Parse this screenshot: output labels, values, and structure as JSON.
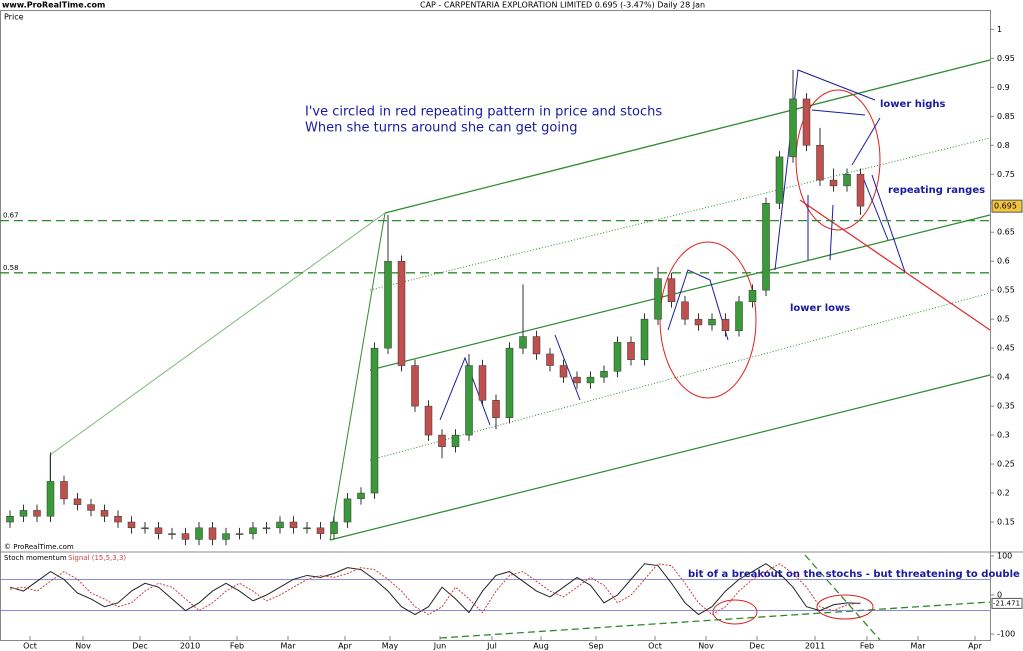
{
  "header": {
    "site": "www.ProRealTime.com",
    "title": "CAP - CARPENTARIA EXPLORATION LIMITED   0.695 (-3.47%)   Daily  28 Jan"
  },
  "chart_data": [
    {
      "type": "candlestick",
      "y_label": "Price",
      "copyright": "© ProRealTime.com",
      "ylim": [
        0.1,
        1.03
      ],
      "yticks": [
        0.15,
        0.2,
        0.25,
        0.3,
        0.35,
        0.4,
        0.45,
        0.5,
        0.55,
        0.6,
        0.65,
        0.7,
        0.75,
        0.8,
        0.85,
        0.9,
        0.95,
        1
      ],
      "months": [
        "Oct",
        "Nov",
        "Dec",
        "2010",
        "Feb",
        "Mar",
        "Apr",
        "May",
        "Jun",
        "Jul",
        "Aug",
        "Sep",
        "Oct",
        "Nov",
        "Dec",
        "2011",
        "Feb",
        "Mar",
        "Apr"
      ],
      "levels": [
        0.67,
        0.58
      ],
      "up_color": "#3a9a3a",
      "down_color": "#c0504d",
      "candles": [
        [
          0.15,
          0.17,
          0.14,
          0.16
        ],
        [
          0.16,
          0.18,
          0.15,
          0.17
        ],
        [
          0.17,
          0.18,
          0.15,
          0.16
        ],
        [
          0.16,
          0.27,
          0.15,
          0.22
        ],
        [
          0.22,
          0.23,
          0.18,
          0.19
        ],
        [
          0.19,
          0.2,
          0.17,
          0.18
        ],
        [
          0.18,
          0.19,
          0.16,
          0.17
        ],
        [
          0.17,
          0.18,
          0.15,
          0.16
        ],
        [
          0.16,
          0.17,
          0.14,
          0.15
        ],
        [
          0.15,
          0.16,
          0.13,
          0.14
        ],
        [
          0.14,
          0.15,
          0.13,
          0.14
        ],
        [
          0.14,
          0.15,
          0.12,
          0.13
        ],
        [
          0.13,
          0.14,
          0.12,
          0.13
        ],
        [
          0.13,
          0.14,
          0.11,
          0.12
        ],
        [
          0.12,
          0.15,
          0.11,
          0.14
        ],
        [
          0.14,
          0.15,
          0.11,
          0.12
        ],
        [
          0.12,
          0.14,
          0.11,
          0.13
        ],
        [
          0.13,
          0.14,
          0.12,
          0.13
        ],
        [
          0.13,
          0.15,
          0.12,
          0.14
        ],
        [
          0.14,
          0.15,
          0.13,
          0.14
        ],
        [
          0.14,
          0.16,
          0.13,
          0.15
        ],
        [
          0.15,
          0.16,
          0.13,
          0.14
        ],
        [
          0.14,
          0.15,
          0.13,
          0.14
        ],
        [
          0.14,
          0.15,
          0.12,
          0.13
        ],
        [
          0.13,
          0.16,
          0.12,
          0.15
        ],
        [
          0.15,
          0.2,
          0.14,
          0.19
        ],
        [
          0.19,
          0.21,
          0.18,
          0.2
        ],
        [
          0.2,
          0.46,
          0.19,
          0.45
        ],
        [
          0.45,
          0.68,
          0.44,
          0.6
        ],
        [
          0.6,
          0.61,
          0.41,
          0.42
        ],
        [
          0.42,
          0.43,
          0.34,
          0.35
        ],
        [
          0.35,
          0.36,
          0.29,
          0.3
        ],
        [
          0.3,
          0.31,
          0.26,
          0.28
        ],
        [
          0.28,
          0.31,
          0.27,
          0.3
        ],
        [
          0.3,
          0.44,
          0.29,
          0.42
        ],
        [
          0.42,
          0.43,
          0.35,
          0.36
        ],
        [
          0.36,
          0.37,
          0.31,
          0.33
        ],
        [
          0.33,
          0.46,
          0.32,
          0.45
        ],
        [
          0.45,
          0.56,
          0.44,
          0.47
        ],
        [
          0.47,
          0.48,
          0.43,
          0.44
        ],
        [
          0.44,
          0.45,
          0.41,
          0.42
        ],
        [
          0.42,
          0.43,
          0.39,
          0.4
        ],
        [
          0.4,
          0.41,
          0.38,
          0.39
        ],
        [
          0.39,
          0.41,
          0.38,
          0.4
        ],
        [
          0.4,
          0.42,
          0.39,
          0.41
        ],
        [
          0.41,
          0.47,
          0.4,
          0.46
        ],
        [
          0.46,
          0.47,
          0.42,
          0.43
        ],
        [
          0.43,
          0.51,
          0.42,
          0.5
        ],
        [
          0.5,
          0.59,
          0.49,
          0.57
        ],
        [
          0.57,
          0.58,
          0.52,
          0.53
        ],
        [
          0.53,
          0.54,
          0.49,
          0.5
        ],
        [
          0.5,
          0.51,
          0.48,
          0.49
        ],
        [
          0.49,
          0.51,
          0.48,
          0.5
        ],
        [
          0.5,
          0.51,
          0.47,
          0.48
        ],
        [
          0.48,
          0.54,
          0.47,
          0.53
        ],
        [
          0.53,
          0.56,
          0.52,
          0.55
        ],
        [
          0.55,
          0.71,
          0.54,
          0.7
        ],
        [
          0.7,
          0.79,
          0.69,
          0.78
        ],
        [
          0.78,
          0.93,
          0.77,
          0.88
        ],
        [
          0.88,
          0.89,
          0.79,
          0.8
        ],
        [
          0.8,
          0.83,
          0.73,
          0.74
        ],
        [
          0.74,
          0.76,
          0.72,
          0.73
        ],
        [
          0.73,
          0.76,
          0.72,
          0.75
        ],
        [
          0.75,
          0.76,
          0.68,
          0.695
        ]
      ],
      "annotations": [
        "I've circled in red repeating pattern in price and stochs",
        "When she turns around she can get going",
        "lower highs",
        "repeating ranges",
        "lower lows"
      ]
    },
    {
      "type": "line",
      "title": "Stoch momentum",
      "ylim": [
        -110,
        110
      ],
      "yticks": [
        100,
        0,
        -100
      ],
      "bands": [
        40,
        -40
      ],
      "annotation": "bit of a breakout on the stochs - but threatening to double dip",
      "series": [
        {
          "name": "Stoch momentum",
          "color": "#222222",
          "values": [
            20,
            10,
            35,
            60,
            40,
            5,
            -10,
            -30,
            -20,
            10,
            30,
            20,
            -10,
            -40,
            -20,
            10,
            30,
            10,
            -15,
            0,
            20,
            40,
            50,
            45,
            55,
            70,
            65,
            40,
            10,
            -30,
            -50,
            -30,
            20,
            -10,
            -45,
            10,
            50,
            60,
            35,
            10,
            -5,
            20,
            45,
            25,
            -20,
            0,
            40,
            80,
            75,
            30,
            -20,
            -50,
            -30,
            10,
            40,
            60,
            80,
            55,
            20,
            -30,
            -40,
            -25,
            -20,
            -21.471
          ]
        },
        {
          "name": "Signal (15,5,3,3)",
          "color": "#d04040",
          "values": [
            15,
            20,
            10,
            35,
            60,
            40,
            5,
            -10,
            -30,
            -20,
            10,
            30,
            20,
            -10,
            -40,
            -20,
            10,
            30,
            10,
            -15,
            0,
            20,
            40,
            50,
            45,
            55,
            70,
            65,
            40,
            10,
            -30,
            -50,
            -30,
            20,
            -10,
            -45,
            10,
            50,
            60,
            35,
            10,
            -5,
            20,
            45,
            25,
            -20,
            0,
            40,
            80,
            75,
            30,
            -20,
            -50,
            -30,
            10,
            40,
            60,
            80,
            55,
            20,
            -30,
            -40,
            -25,
            -20
          ]
        }
      ]
    }
  ]
}
